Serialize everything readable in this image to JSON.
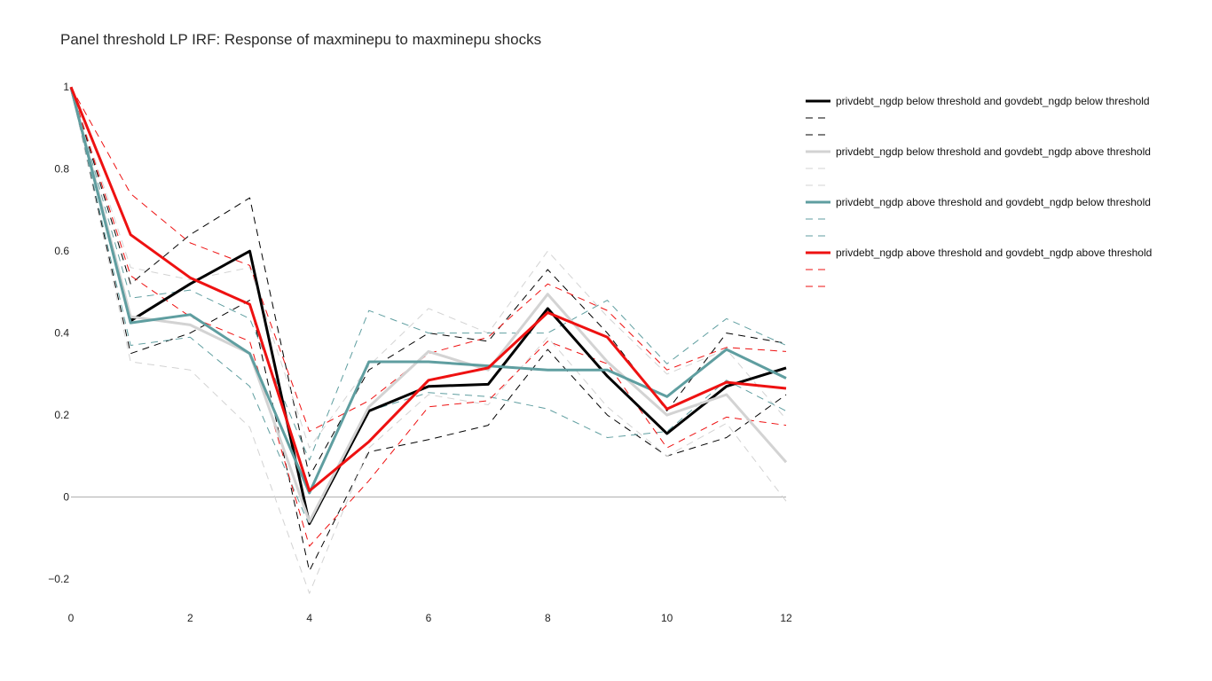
{
  "chart_data": {
    "type": "line",
    "title": "Panel threshold LP IRF: Response of maxminepu to maxminepu shocks",
    "xlabel": "",
    "ylabel": "",
    "x": [
      0,
      1,
      2,
      3,
      4,
      5,
      6,
      7,
      8,
      9,
      10,
      11,
      12
    ],
    "xlim": [
      0,
      12
    ],
    "ylim": [
      -0.28,
      1.02
    ],
    "xticks": [
      0,
      2,
      4,
      6,
      8,
      10,
      12
    ],
    "xtick_labels": [
      "0",
      "2",
      "4",
      "6",
      "8",
      "10",
      "12"
    ],
    "yticks": [
      -0.2,
      0,
      0.2,
      0.4,
      0.6,
      0.8,
      1
    ],
    "ytick_labels": [
      "−0.2",
      "0",
      "0.2",
      "0.4",
      "0.6",
      "0.8",
      "1"
    ],
    "grid": false,
    "zero_line": true,
    "legend_position": "right",
    "series": [
      {
        "name": "privdebt_ngdp below threshold and govdebt_ngdp below threshold",
        "role": "irf",
        "color": "#000000",
        "values": [
          1.0,
          0.43,
          0.52,
          0.6,
          -0.065,
          0.21,
          0.27,
          0.275,
          0.46,
          0.295,
          0.155,
          0.27,
          0.315
        ]
      },
      {
        "name": "",
        "role": "band",
        "color": "#000000",
        "values": [
          1.0,
          0.52,
          0.64,
          0.73,
          0.05,
          0.31,
          0.4,
          0.38,
          0.555,
          0.4,
          0.21,
          0.4,
          0.375
        ]
      },
      {
        "name": "",
        "role": "band",
        "color": "#000000",
        "values": [
          1.0,
          0.35,
          0.4,
          0.48,
          -0.18,
          0.11,
          0.14,
          0.175,
          0.36,
          0.2,
          0.1,
          0.145,
          0.25
        ]
      },
      {
        "name": "privdebt_ngdp below threshold and govdebt_ngdp above threshold",
        "role": "irf",
        "color": "#d3d3d3",
        "values": [
          1.0,
          0.44,
          0.42,
          0.35,
          -0.06,
          0.22,
          0.355,
          0.31,
          0.495,
          0.33,
          0.2,
          0.25,
          0.085
        ]
      },
      {
        "name": "",
        "role": "band",
        "color": "#d3d3d3",
        "values": [
          1.0,
          0.56,
          0.53,
          0.56,
          0.12,
          0.32,
          0.46,
          0.4,
          0.6,
          0.44,
          0.3,
          0.36,
          0.19
        ]
      },
      {
        "name": "",
        "role": "band",
        "color": "#d3d3d3",
        "values": [
          1.0,
          0.33,
          0.31,
          0.17,
          -0.235,
          0.12,
          0.25,
          0.225,
          0.39,
          0.22,
          0.1,
          0.18,
          -0.01
        ]
      },
      {
        "name": "privdebt_ngdp above threshold and govdebt_ngdp below threshold",
        "role": "irf",
        "color": "#5f9ea0",
        "values": [
          1.0,
          0.425,
          0.445,
          0.35,
          0.01,
          0.33,
          0.33,
          0.32,
          0.31,
          0.31,
          0.245,
          0.36,
          0.29
        ]
      },
      {
        "name": "",
        "role": "band",
        "color": "#5f9ea0",
        "values": [
          1.0,
          0.485,
          0.505,
          0.435,
          0.09,
          0.455,
          0.4,
          0.4,
          0.4,
          0.48,
          0.325,
          0.435,
          0.37
        ]
      },
      {
        "name": "",
        "role": "band",
        "color": "#5f9ea0",
        "values": [
          1.0,
          0.37,
          0.39,
          0.27,
          -0.07,
          0.21,
          0.255,
          0.245,
          0.215,
          0.145,
          0.16,
          0.285,
          0.21
        ]
      },
      {
        "name": "privdebt_ngdp above threshold and govdebt_ngdp above threshold",
        "role": "irf",
        "color": "#ee1111",
        "values": [
          1.0,
          0.64,
          0.535,
          0.47,
          0.015,
          0.135,
          0.285,
          0.315,
          0.45,
          0.39,
          0.215,
          0.28,
          0.265
        ]
      },
      {
        "name": "",
        "role": "band",
        "color": "#ee1111",
        "values": [
          1.0,
          0.74,
          0.62,
          0.565,
          0.16,
          0.235,
          0.35,
          0.39,
          0.52,
          0.455,
          0.31,
          0.365,
          0.355
        ]
      },
      {
        "name": "",
        "role": "band",
        "color": "#ee1111",
        "values": [
          1.0,
          0.54,
          0.44,
          0.38,
          -0.12,
          0.04,
          0.22,
          0.235,
          0.38,
          0.325,
          0.12,
          0.195,
          0.175
        ]
      }
    ]
  }
}
